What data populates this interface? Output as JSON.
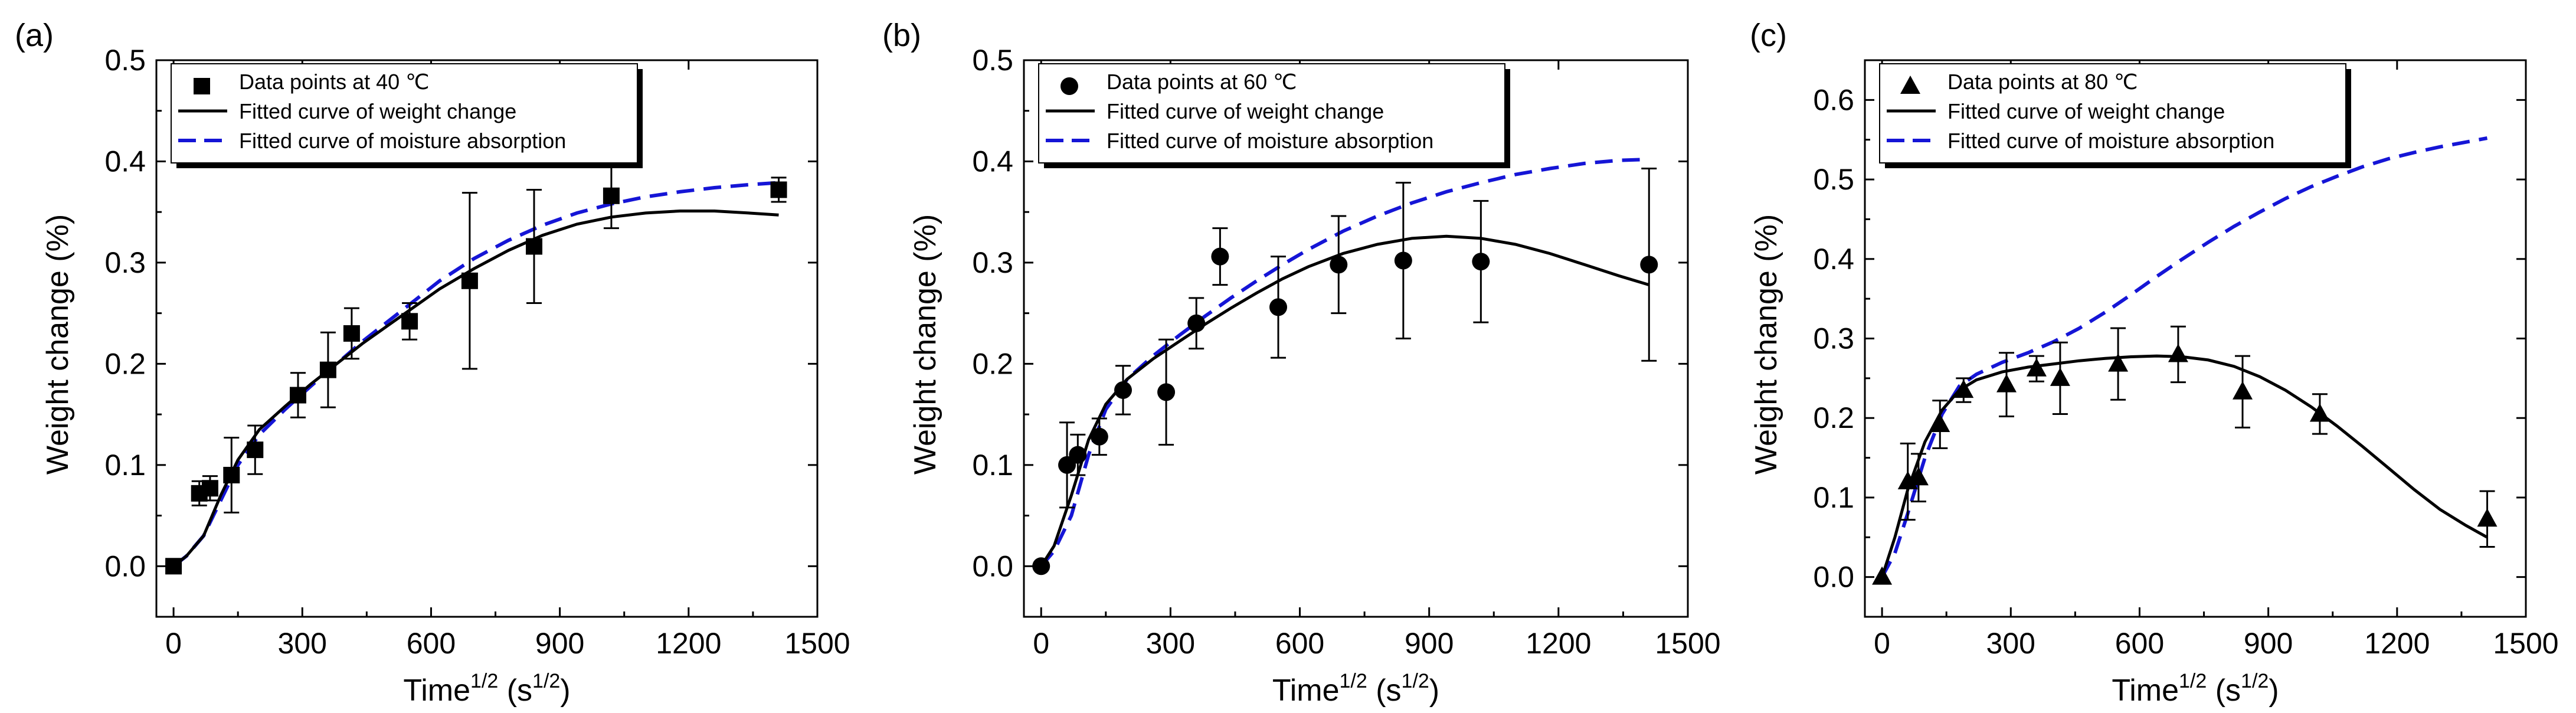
{
  "figure": {
    "description_labels": [
      "(a)",
      "(b)",
      "(c)"
    ]
  },
  "chart_data": [
    {
      "type": "scatter",
      "panel_label": "(a)",
      "marker": "square",
      "xlabel": {
        "base": "Time",
        "sup": "1/2",
        "unit_base": " (s",
        "unit_sup": "1/2",
        "unit_end": ")"
      },
      "ylabel": "Weight change (%)",
      "xlim": [
        -40,
        1500
      ],
      "ylim": [
        -0.05,
        0.5
      ],
      "xticks": [
        0,
        300,
        600,
        900,
        1200,
        1500
      ],
      "xtick_labels": [
        "0",
        "300",
        "600",
        "900",
        "1200",
        "1500"
      ],
      "yticks": [
        0.0,
        0.1,
        0.2,
        0.3,
        0.4,
        0.5
      ],
      "ytick_labels": [
        "0.0",
        "0.1",
        "0.2",
        "0.3",
        "0.4",
        "0.5"
      ],
      "legend": {
        "placement": "top-left",
        "entries": [
          "Data points at 40 ℃",
          "Fitted curve of weight change",
          "Fitted curve of moisture absorption"
        ]
      },
      "colors": {
        "points": "#000000",
        "weight_curve": "#000000",
        "moisture_curve": "#1515d6"
      },
      "points": {
        "x": [
          0,
          60,
          85,
          135,
          190,
          290,
          360,
          415,
          550,
          690,
          840,
          1020,
          1410
        ],
        "y": [
          0.0,
          0.072,
          0.077,
          0.09,
          0.115,
          0.169,
          0.194,
          0.23,
          0.242,
          0.282,
          0.316,
          0.366,
          0.372
        ],
        "err": [
          0,
          0.012,
          0.012,
          0.037,
          0.024,
          0.022,
          0.037,
          0.025,
          0.018,
          0.087,
          0.056,
          0.032,
          0.012
        ]
      },
      "weight_curve": {
        "x": [
          0,
          30,
          70,
          110,
          150,
          200,
          260,
          320,
          380,
          440,
          500,
          560,
          620,
          700,
          780,
          860,
          940,
          1020,
          1100,
          1180,
          1260,
          1340,
          1410
        ],
        "y": [
          0.0,
          0.01,
          0.03,
          0.07,
          0.105,
          0.135,
          0.158,
          0.18,
          0.2,
          0.22,
          0.238,
          0.256,
          0.274,
          0.294,
          0.312,
          0.327,
          0.338,
          0.345,
          0.349,
          0.351,
          0.351,
          0.349,
          0.347
        ]
      },
      "moisture_curve": {
        "x": [
          0,
          30,
          70,
          110,
          150,
          200,
          260,
          320,
          380,
          440,
          500,
          560,
          620,
          700,
          780,
          860,
          940,
          1020,
          1100,
          1180,
          1260,
          1340,
          1410
        ],
        "y": [
          0.0,
          0.01,
          0.03,
          0.065,
          0.1,
          0.13,
          0.155,
          0.178,
          0.2,
          0.222,
          0.242,
          0.262,
          0.282,
          0.304,
          0.322,
          0.337,
          0.349,
          0.358,
          0.365,
          0.37,
          0.374,
          0.377,
          0.379
        ]
      }
    },
    {
      "type": "scatter",
      "panel_label": "(b)",
      "marker": "circle",
      "xlabel": {
        "base": "Time",
        "sup": "1/2",
        "unit_base": " (s",
        "unit_sup": "1/2",
        "unit_end": ")"
      },
      "ylabel": "Weight change (%)",
      "xlim": [
        -40,
        1500
      ],
      "ylim": [
        -0.05,
        0.5
      ],
      "xticks": [
        0,
        300,
        600,
        900,
        1200,
        1500
      ],
      "xtick_labels": [
        "0",
        "300",
        "600",
        "900",
        "1200",
        "1500"
      ],
      "yticks": [
        0.0,
        0.1,
        0.2,
        0.3,
        0.4,
        0.5
      ],
      "ytick_labels": [
        "0.0",
        "0.1",
        "0.2",
        "0.3",
        "0.4",
        "0.5"
      ],
      "legend": {
        "placement": "top-left",
        "entries": [
          "Data points at 60 ℃",
          "Fitted curve of weight change",
          "Fitted curve of moisture absorption"
        ]
      },
      "colors": {
        "points": "#000000",
        "weight_curve": "#000000",
        "moisture_curve": "#1515d6"
      },
      "points": {
        "x": [
          0,
          60,
          85,
          135,
          190,
          290,
          360,
          415,
          550,
          690,
          840,
          1020,
          1410
        ],
        "y": [
          0.0,
          0.1,
          0.11,
          0.128,
          0.174,
          0.172,
          0.24,
          0.306,
          0.256,
          0.298,
          0.302,
          0.301,
          0.298
        ],
        "err": [
          0,
          0.042,
          0.02,
          0.018,
          0.024,
          0.052,
          0.025,
          0.028,
          0.05,
          0.048,
          0.077,
          0.06,
          0.095
        ]
      },
      "weight_curve": {
        "x": [
          0,
          30,
          70,
          110,
          150,
          200,
          260,
          320,
          380,
          440,
          500,
          560,
          620,
          700,
          780,
          860,
          940,
          1020,
          1100,
          1180,
          1260,
          1340,
          1410
        ],
        "y": [
          0.0,
          0.02,
          0.07,
          0.125,
          0.16,
          0.185,
          0.205,
          0.222,
          0.239,
          0.255,
          0.27,
          0.284,
          0.296,
          0.309,
          0.318,
          0.324,
          0.326,
          0.324,
          0.318,
          0.309,
          0.298,
          0.287,
          0.278
        ]
      },
      "moisture_curve": {
        "x": [
          0,
          30,
          70,
          110,
          150,
          200,
          260,
          320,
          380,
          440,
          500,
          560,
          620,
          700,
          780,
          860,
          940,
          1020,
          1100,
          1180,
          1260,
          1340,
          1410
        ],
        "y": [
          0.0,
          0.015,
          0.05,
          0.11,
          0.155,
          0.185,
          0.208,
          0.228,
          0.247,
          0.265,
          0.282,
          0.298,
          0.313,
          0.331,
          0.346,
          0.359,
          0.37,
          0.379,
          0.387,
          0.393,
          0.398,
          0.401,
          0.402
        ]
      }
    },
    {
      "type": "scatter",
      "panel_label": "(c)",
      "marker": "triangle",
      "xlabel": {
        "base": "Time",
        "sup": "1/2",
        "unit_base": " (s",
        "unit_sup": "1/2",
        "unit_end": ")"
      },
      "ylabel": "Weight change (%)",
      "xlim": [
        -40,
        1500
      ],
      "ylim": [
        -0.05,
        0.65
      ],
      "xticks": [
        0,
        300,
        600,
        900,
        1200,
        1500
      ],
      "xtick_labels": [
        "0",
        "300",
        "600",
        "900",
        "1200",
        "1500"
      ],
      "yticks": [
        0.0,
        0.1,
        0.2,
        0.3,
        0.4,
        0.5,
        0.6
      ],
      "ytick_labels": [
        "0.0",
        "0.1",
        "0.2",
        "0.3",
        "0.4",
        "0.5",
        "0.6"
      ],
      "legend": {
        "placement": "top-left",
        "entries": [
          "Data points at 80 ℃",
          "Fitted curve of weight change",
          "Fitted curve of moisture absorption"
        ]
      },
      "colors": {
        "points": "#000000",
        "weight_curve": "#000000",
        "moisture_curve": "#1515d6"
      },
      "points": {
        "x": [
          0,
          60,
          85,
          135,
          190,
          290,
          360,
          415,
          550,
          690,
          840,
          1020,
          1410
        ],
        "y": [
          0.0,
          0.12,
          0.125,
          0.192,
          0.235,
          0.242,
          0.262,
          0.25,
          0.268,
          0.28,
          0.233,
          0.205,
          0.073
        ],
        "err": [
          0,
          0.048,
          0.03,
          0.03,
          0.015,
          0.04,
          0.016,
          0.045,
          0.045,
          0.035,
          0.045,
          0.025,
          0.035
        ]
      },
      "weight_curve": {
        "x": [
          0,
          30,
          60,
          100,
          140,
          180,
          220,
          280,
          340,
          400,
          460,
          520,
          580,
          640,
          700,
          760,
          820,
          880,
          940,
          1000,
          1060,
          1120,
          1180,
          1240,
          1300,
          1360,
          1410
        ],
        "y": [
          0.0,
          0.05,
          0.11,
          0.17,
          0.21,
          0.235,
          0.248,
          0.258,
          0.264,
          0.268,
          0.272,
          0.275,
          0.277,
          0.278,
          0.277,
          0.273,
          0.265,
          0.252,
          0.235,
          0.214,
          0.19,
          0.164,
          0.137,
          0.11,
          0.085,
          0.065,
          0.05
        ]
      },
      "moisture_curve": {
        "x": [
          0,
          30,
          60,
          100,
          140,
          180,
          220,
          280,
          340,
          400,
          460,
          520,
          580,
          640,
          700,
          760,
          820,
          880,
          940,
          1000,
          1060,
          1120,
          1180,
          1240,
          1300,
          1360,
          1410
        ],
        "y": [
          0.0,
          0.03,
          0.08,
          0.15,
          0.205,
          0.24,
          0.255,
          0.27,
          0.282,
          0.296,
          0.313,
          0.333,
          0.355,
          0.378,
          0.4,
          0.421,
          0.441,
          0.459,
          0.476,
          0.491,
          0.504,
          0.516,
          0.526,
          0.534,
          0.541,
          0.547,
          0.552
        ]
      }
    }
  ]
}
